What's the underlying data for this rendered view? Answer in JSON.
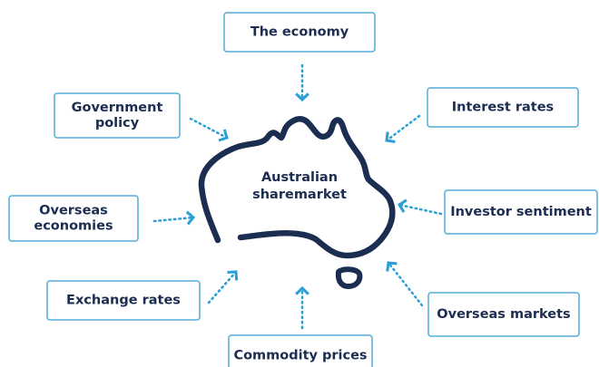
{
  "center": {
    "lines": [
      "Australian",
      "sharemarket"
    ]
  },
  "nodes": [
    {
      "lines": [
        "The economy"
      ]
    },
    {
      "lines": [
        "Government",
        "policy"
      ]
    },
    {
      "lines": [
        "Interest rates"
      ]
    },
    {
      "lines": [
        "Overseas",
        "economies"
      ]
    },
    {
      "lines": [
        "Investor sentiment"
      ]
    },
    {
      "lines": [
        "Exchange rates"
      ]
    },
    {
      "lines": [
        "Overseas markets"
      ]
    },
    {
      "lines": [
        "Commodity prices"
      ]
    }
  ]
}
